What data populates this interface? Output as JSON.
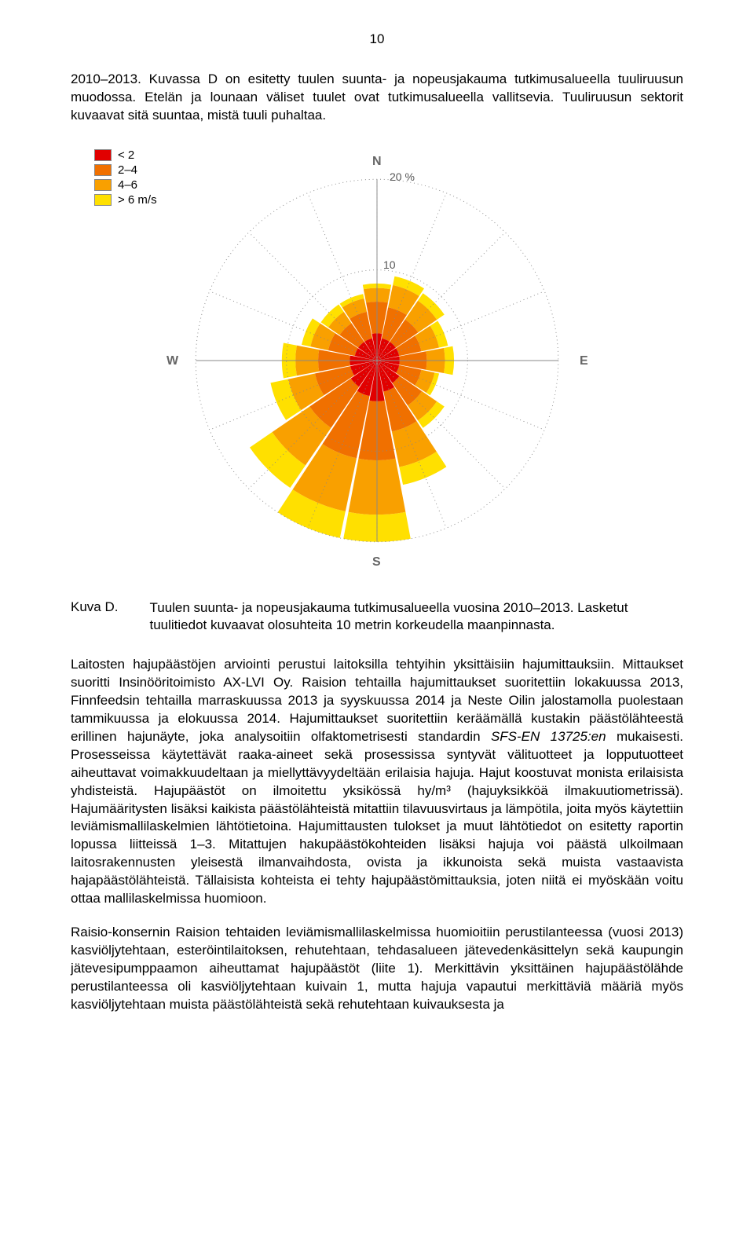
{
  "page_number": "10",
  "paragraphs": {
    "p1": "2010–2013. Kuvassa D on esitetty tuulen suunta- ja nopeusjakauma tutkimusalueella tuuliruusun muodossa. Etelän ja lounaan väliset tuulet ovat tutkimusalueella vallitsevia. Tuuliruusun sektorit kuvaavat sitä suuntaa, mistä tuuli puhaltaa.",
    "p2_a": "Laitosten hajupäästöjen arviointi perustui laitoksilla tehtyihin yksittäisiin hajumittauksiin. Mittaukset suoritti Insinööritoimisto AX-LVI Oy. Raision tehtailla hajumittaukset suoritettiin lokakuussa 2013, Finnfeedsin tehtailla marraskuussa 2013 ja syyskuussa 2014 ja Neste Oilin jalostamolla puolestaan tammikuussa ja elokuussa 2014. Hajumittaukset suoritettiin keräämällä kustakin päästölähteestä erillinen hajunäyte, joka analysoitiin olfaktometrisesti standardin ",
    "p2_italic": "SFS-EN 13725:en",
    "p2_b": " mukaisesti. Prosesseissa käytettävät raaka-aineet sekä prosessissa syntyvät välituotteet ja lopputuotteet aiheuttavat voimakkuudeltaan ja miellyttävyydeltään erilaisia hajuja. Hajut koostuvat monista erilaisista yhdisteistä. Hajupäästöt on ilmoitettu yksikössä hy/m³ (hajuyksikköä ilmakuutiometrissä). Hajumääritysten lisäksi kaikista päästölähteistä mitattiin tilavuusvirtaus ja lämpötila, joita myös käytettiin leviämismallilaskelmien lähtötietoina. Hajumittausten tulokset ja muut lähtötiedot on esitetty raportin lopussa liitteissä 1–3. Mitattujen hakupäästökohteiden lisäksi hajuja voi päästä ulkoilmaan laitosrakennusten yleisestä ilmanvaihdosta, ovista ja ikkunoista sekä muista vastaavista hajapäästölähteistä. Tällaisista kohteista ei tehty hajupäästömittauksia, joten niitä ei myöskään voitu ottaa mallilaskelmissa huomioon.",
    "p3": "Raisio-konsernin Raision tehtaiden leviämismallilaskelmissa huomioitiin perustilanteessa (vuosi 2013) kasviöljytehtaan, esteröintilaitoksen, rehutehtaan, tehdasalueen jätevedenkäsittelyn sekä kaupungin jätevesipumppaamon aiheuttamat hajupäästöt (liite 1). Merkittävin yksittäinen hajupäästölähde perustilanteessa oli kasviöljytehtaan kuivain 1, mutta hajuja vapautui merkittäviä määriä myös kasviöljytehtaan muista päästölähteistä sekä rehutehtaan kuivauksesta ja"
  },
  "caption": {
    "label": "Kuva D.",
    "text": "Tuulen suunta- ja nopeusjakauma tutkimusalueella vuosina 2010–2013. Lasketut tuulitiedot kuvaavat olosuhteita 10 metrin korkeudella maanpinnasta."
  },
  "windrose": {
    "legend": [
      {
        "label": "< 2",
        "color": "#e10000"
      },
      {
        "label": "2–4",
        "color": "#f07000"
      },
      {
        "label": "4–6",
        "color": "#f9a000"
      },
      {
        "label": "> 6 m/s",
        "color": "#ffe000"
      }
    ],
    "compass": {
      "N": "N",
      "E": "E",
      "S": "S",
      "W": "W"
    },
    "rings": [
      {
        "percent": 10,
        "label": "10"
      },
      {
        "percent": 20,
        "label": "20 %"
      }
    ],
    "max_percent": 20,
    "sector_count": 16,
    "colors": {
      "bin1": "#e10000",
      "bin2": "#f07000",
      "bin3": "#f9a000",
      "bin4": "#ffe000",
      "grid": "#888888",
      "axis_text": "#666666",
      "background": "#ffffff"
    },
    "sectors": [
      {
        "dir": "N",
        "cum": [
          3.0,
          6.5,
          8.0,
          8.5
        ]
      },
      {
        "dir": "NNE",
        "cum": [
          2.5,
          6.0,
          8.5,
          9.5
        ]
      },
      {
        "dir": "NE",
        "cum": [
          2.5,
          5.5,
          8.0,
          9.0
        ]
      },
      {
        "dir": "ENE",
        "cum": [
          2.5,
          5.0,
          7.0,
          8.0
        ]
      },
      {
        "dir": "E",
        "cum": [
          2.5,
          5.5,
          7.5,
          8.5
        ]
      },
      {
        "dir": "ESE",
        "cum": [
          2.5,
          5.0,
          6.5,
          7.0
        ]
      },
      {
        "dir": "SE",
        "cum": [
          3.0,
          6.0,
          8.0,
          9.0
        ]
      },
      {
        "dir": "SSE",
        "cum": [
          3.5,
          8.0,
          12.0,
          14.0
        ]
      },
      {
        "dir": "S",
        "cum": [
          4.5,
          11.0,
          17.0,
          20.0
        ]
      },
      {
        "dir": "SSW",
        "cum": [
          4.0,
          11.0,
          17.0,
          20.0
        ]
      },
      {
        "dir": "SW",
        "cum": [
          3.5,
          9.0,
          14.0,
          17.0
        ]
      },
      {
        "dir": "WSW",
        "cum": [
          3.0,
          7.0,
          10.0,
          12.0
        ]
      },
      {
        "dir": "W",
        "cum": [
          3.0,
          6.5,
          9.0,
          10.5
        ]
      },
      {
        "dir": "WNW",
        "cum": [
          2.5,
          5.5,
          7.5,
          8.5
        ]
      },
      {
        "dir": "NW",
        "cum": [
          2.5,
          5.0,
          6.5,
          7.5
        ]
      },
      {
        "dir": "NNW",
        "cum": [
          2.5,
          5.5,
          7.0,
          7.5
        ]
      }
    ]
  }
}
